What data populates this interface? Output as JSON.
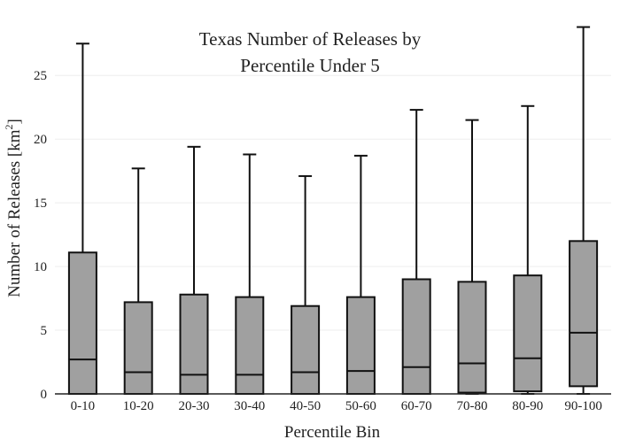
{
  "chart_data": {
    "type": "box",
    "title_lines": [
      "Texas Number of Releases by",
      "Percentile Under 5"
    ],
    "xlabel": "Percentile Bin",
    "ylabel_main": "Number of Releases  [km",
    "ylabel_sup": "2",
    "ylabel_end": "]",
    "ylim": [
      0,
      28.7
    ],
    "yticks": [
      0,
      5,
      10,
      15,
      20,
      25
    ],
    "grid": "horizontal",
    "legend": "none",
    "colors": {
      "box_fill": "#a0a0a0",
      "box_stroke": "#111111",
      "grid": "#eeeeee"
    },
    "categories": [
      "0-10",
      "10-20",
      "20-30",
      "30-40",
      "40-50",
      "50-60",
      "60-70",
      "70-80",
      "80-90",
      "90-100"
    ],
    "boxes": [
      {
        "min": 0,
        "q1": 0,
        "median": 2.7,
        "q3": 11.1,
        "max": 27.5
      },
      {
        "min": 0,
        "q1": 0,
        "median": 1.7,
        "q3": 7.2,
        "max": 17.7
      },
      {
        "min": 0,
        "q1": 0,
        "median": 1.5,
        "q3": 7.8,
        "max": 19.4
      },
      {
        "min": 0,
        "q1": 0,
        "median": 1.5,
        "q3": 7.6,
        "max": 18.8
      },
      {
        "min": 0,
        "q1": 0,
        "median": 1.7,
        "q3": 6.9,
        "max": 17.1
      },
      {
        "min": 0,
        "q1": 0,
        "median": 1.8,
        "q3": 7.6,
        "max": 18.7
      },
      {
        "min": 0,
        "q1": 0,
        "median": 2.1,
        "q3": 9.0,
        "max": 22.3
      },
      {
        "min": 0,
        "q1": 0.1,
        "median": 2.4,
        "q3": 8.8,
        "max": 21.5
      },
      {
        "min": 0,
        "q1": 0.2,
        "median": 2.8,
        "q3": 9.3,
        "max": 22.6
      },
      {
        "min": 0,
        "q1": 0.6,
        "median": 4.8,
        "q3": 12.0,
        "max": 28.8
      }
    ]
  }
}
